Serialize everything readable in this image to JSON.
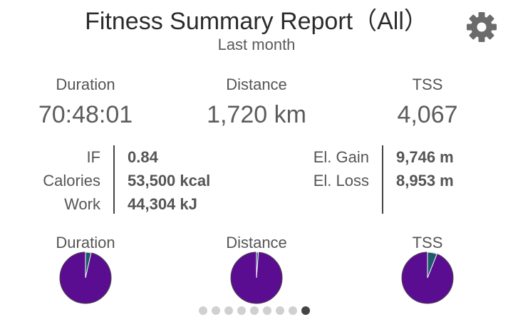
{
  "header": {
    "title": "Fitness Summary Report（All）",
    "subtitle": "Last month"
  },
  "icons": {
    "settings": "gear-icon"
  },
  "stats": [
    {
      "label": "Duration",
      "value": "70:48:01"
    },
    {
      "label": "Distance",
      "value": "1,720 km"
    },
    {
      "label": "TSS",
      "value": "4,067"
    }
  ],
  "details_left": [
    {
      "label": "IF",
      "value": "0.84"
    },
    {
      "label": "Calories",
      "value": "53,500 kcal"
    },
    {
      "label": "Work",
      "value": "44,304 kJ"
    }
  ],
  "details_right": [
    {
      "label": "El. Gain",
      "value": "9,746 m"
    },
    {
      "label": "El. Loss",
      "value": "8,953 m"
    }
  ],
  "pies": [
    {
      "label": "Duration",
      "fraction": 0.035
    },
    {
      "label": "Distance",
      "fraction": 0.012
    },
    {
      "label": "TSS",
      "fraction": 0.06
    }
  ],
  "colors": {
    "pie_main": "#5b0d91",
    "pie_slice": "#1e5a6a",
    "pie_stroke": "#4a4a4a",
    "dot_inactive": "#d0d0d0",
    "dot_active": "#444444"
  },
  "pager": {
    "total": 9,
    "active_index": 8
  }
}
